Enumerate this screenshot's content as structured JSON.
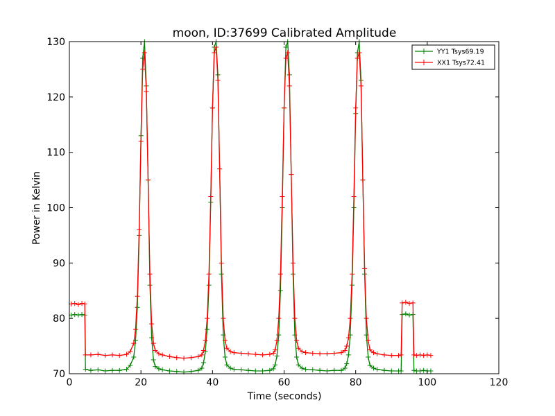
{
  "chart_data": {
    "type": "line",
    "title": "moon, ID:37699 Calibrated Amplitude",
    "xlabel": "Time (seconds)",
    "ylabel": "Power in Kelvin",
    "xlim": [
      0,
      120
    ],
    "ylim": [
      70,
      130
    ],
    "xticks": [
      0,
      20,
      40,
      60,
      80,
      100,
      120
    ],
    "yticks": [
      70,
      80,
      90,
      100,
      110,
      120,
      130
    ],
    "grid": false,
    "legend_position": "top-right",
    "series": [
      {
        "name": "YY1 Tsys69.19",
        "color": "#008000",
        "marker": "+",
        "x": [
          0.5,
          1.5,
          2.5,
          3.5,
          4.3,
          4.5,
          6,
          8,
          10,
          12,
          14,
          16,
          17,
          18,
          18.5,
          19,
          19.5,
          20,
          20.5,
          21,
          21.5,
          22,
          22.5,
          23,
          23.5,
          24,
          25,
          26,
          28,
          30,
          32,
          34,
          36,
          37,
          37.5,
          38,
          38.5,
          39,
          39.5,
          40,
          40.5,
          41,
          41.5,
          42,
          42.5,
          43,
          43.5,
          44,
          45,
          46,
          48,
          50,
          52,
          54,
          56,
          57,
          57.5,
          58,
          58.5,
          59,
          59.5,
          60,
          60.5,
          61,
          61.5,
          62,
          62.5,
          63,
          63.5,
          64,
          65,
          66,
          68,
          70,
          72,
          74,
          76,
          77,
          77.5,
          78,
          78.5,
          79,
          79.5,
          80,
          80.5,
          81,
          81.5,
          82,
          82.5,
          83,
          83.5,
          84,
          85,
          86,
          88,
          90,
          92,
          92.7,
          93,
          94,
          95,
          96,
          96.3,
          97,
          98,
          99,
          100,
          101
        ],
        "y": [
          80.6,
          80.7,
          80.6,
          80.7,
          80.6,
          70.8,
          70.6,
          70.7,
          70.5,
          70.6,
          70.6,
          70.8,
          71.5,
          73,
          76,
          82,
          95,
          113,
          127,
          130,
          122,
          105,
          86,
          76.5,
          72.5,
          71.3,
          70.9,
          70.7,
          70.5,
          70.4,
          70.3,
          70.4,
          70.6,
          71,
          72,
          74,
          78,
          86,
          101,
          118,
          129,
          130,
          124,
          107,
          88,
          77,
          73,
          71.6,
          71,
          70.8,
          70.7,
          70.6,
          70.5,
          70.5,
          70.6,
          70.9,
          71.6,
          73.2,
          77,
          85,
          100,
          118,
          129,
          130,
          124,
          106,
          88,
          77,
          73,
          71.6,
          71,
          70.8,
          70.7,
          70.6,
          70.5,
          70.6,
          70.6,
          71,
          71.8,
          73.4,
          77,
          86,
          100,
          117,
          128,
          130,
          123,
          105,
          88,
          77,
          73,
          71.5,
          71,
          70.8,
          70.6,
          70.5,
          70.5,
          70.5,
          80.7,
          80.8,
          80.6,
          80.7,
          70.6,
          70.5,
          70.5,
          70.6,
          70.5,
          70.5
        ]
      },
      {
        "name": "XX1 Tsys72.41",
        "color": "#ff0000",
        "marker": "+",
        "x": [
          0.5,
          1.5,
          2.5,
          3.5,
          4.3,
          4.5,
          6,
          8,
          10,
          12,
          14,
          16,
          17,
          18,
          18.5,
          19,
          19.5,
          20,
          20.5,
          21,
          21.5,
          22,
          22.5,
          23,
          23.5,
          24,
          25,
          26,
          28,
          30,
          32,
          34,
          36,
          37,
          37.5,
          38,
          38.5,
          39,
          39.5,
          40,
          40.5,
          41,
          41.5,
          42,
          42.5,
          43,
          43.5,
          44,
          45,
          46,
          48,
          50,
          52,
          54,
          56,
          57,
          57.5,
          58,
          58.5,
          59,
          59.5,
          60,
          60.5,
          61,
          61.5,
          62,
          62.5,
          63,
          63.5,
          64,
          65,
          66,
          68,
          70,
          72,
          74,
          76,
          77,
          77.5,
          78,
          78.5,
          79,
          79.5,
          80,
          80.5,
          81,
          81.5,
          82,
          82.5,
          83,
          83.5,
          84,
          85,
          86,
          88,
          90,
          92,
          92.7,
          93,
          94,
          95,
          96,
          96.3,
          97,
          98,
          99,
          100,
          101
        ],
        "y": [
          82.6,
          82.7,
          82.5,
          82.7,
          82.6,
          73.4,
          73.4,
          73.5,
          73.3,
          73.4,
          73.3,
          73.5,
          74,
          75.5,
          78,
          84,
          96,
          112,
          125,
          128,
          121,
          105,
          88,
          79,
          75.5,
          74.2,
          73.6,
          73.4,
          73.1,
          72.9,
          72.8,
          72.9,
          73.1,
          73.4,
          74.2,
          76,
          80,
          88,
          102,
          118,
          128,
          129,
          123,
          107,
          90,
          80,
          76,
          74.6,
          74,
          73.8,
          73.7,
          73.6,
          73.5,
          73.4,
          73.5,
          73.7,
          74.3,
          76,
          80,
          88,
          102,
          118,
          127,
          128,
          122,
          106,
          90,
          80,
          76,
          74.6,
          74,
          73.8,
          73.7,
          73.6,
          73.6,
          73.7,
          73.8,
          74.2,
          75,
          76.5,
          80,
          88,
          102,
          118,
          127,
          128,
          122,
          105,
          89,
          80,
          76,
          74.3,
          73.8,
          73.6,
          73.4,
          73.3,
          73.3,
          73.4,
          82.8,
          82.9,
          82.7,
          82.8,
          73.4,
          73.3,
          73.4,
          73.3,
          73.4,
          73.3
        ]
      }
    ]
  }
}
